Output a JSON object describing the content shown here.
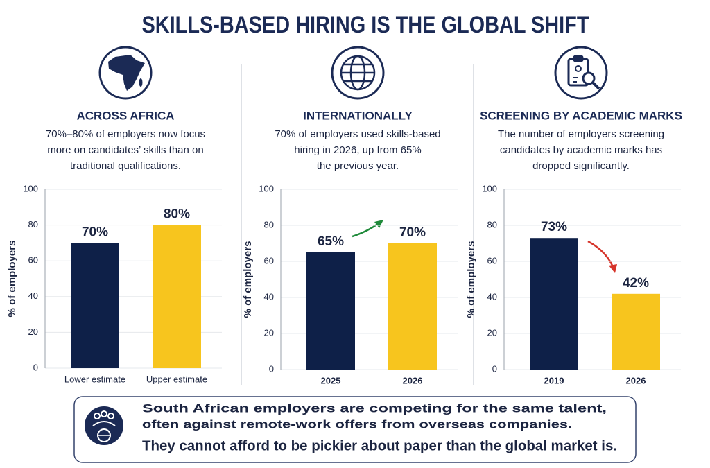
{
  "title": "SKILLS-BASED HIRING IS THE GLOBAL SHIFT",
  "chart_data": [
    {
      "type": "bar",
      "title": "ACROSS AFRICA",
      "subtitle": [
        "70%–80% of employers now focus",
        "more on candidates’ skills than on",
        "traditional qualifications."
      ],
      "categories": [
        "Lower estimate",
        "Upper estimate"
      ],
      "values": [
        70,
        80
      ],
      "value_labels": [
        "70%",
        "80%"
      ],
      "colors": [
        "#0e2048",
        "#f7c51e"
      ],
      "ylabel": "% of employers",
      "ylim": [
        0,
        100
      ],
      "yticks": [
        0,
        20,
        40,
        60,
        80,
        100
      ],
      "grid": true
    },
    {
      "type": "bar",
      "title": "INTERNATIONALLY",
      "subtitle": [
        "70% of employers used skills-based",
        "hiring in 2026, up from 65%",
        "the previous year."
      ],
      "categories": [
        "2025",
        "2026"
      ],
      "values": [
        65,
        70
      ],
      "value_labels": [
        "65%",
        "70%"
      ],
      "colors": [
        "#0e2048",
        "#f7c51e"
      ],
      "ylabel": "% of employers",
      "ylim": [
        0,
        100
      ],
      "yticks": [
        0,
        20,
        40,
        60,
        80,
        100
      ],
      "grid": true
    },
    {
      "type": "bar",
      "title": "SCREENING BY ACADEMIC MARKS",
      "subtitle": [
        "The number of employers screening",
        "candidates by academic marks has",
        "dropped significantly."
      ],
      "categories": [
        "2019",
        "2026"
      ],
      "values": [
        73,
        42
      ],
      "value_labels": [
        "73%",
        "42%"
      ],
      "colors": [
        "#0e2048",
        "#f7c51e"
      ],
      "ylabel": "% of employers",
      "ylim": [
        0,
        100
      ],
      "yticks": [
        0,
        20,
        40,
        60,
        80,
        100
      ],
      "grid": true
    }
  ],
  "footer": {
    "lines": [
      "South African employers are competing for the same talent,",
      "often against remote-work offers from overseas companies.",
      "They cannot afford to be pickier about paper than the global market is."
    ]
  }
}
